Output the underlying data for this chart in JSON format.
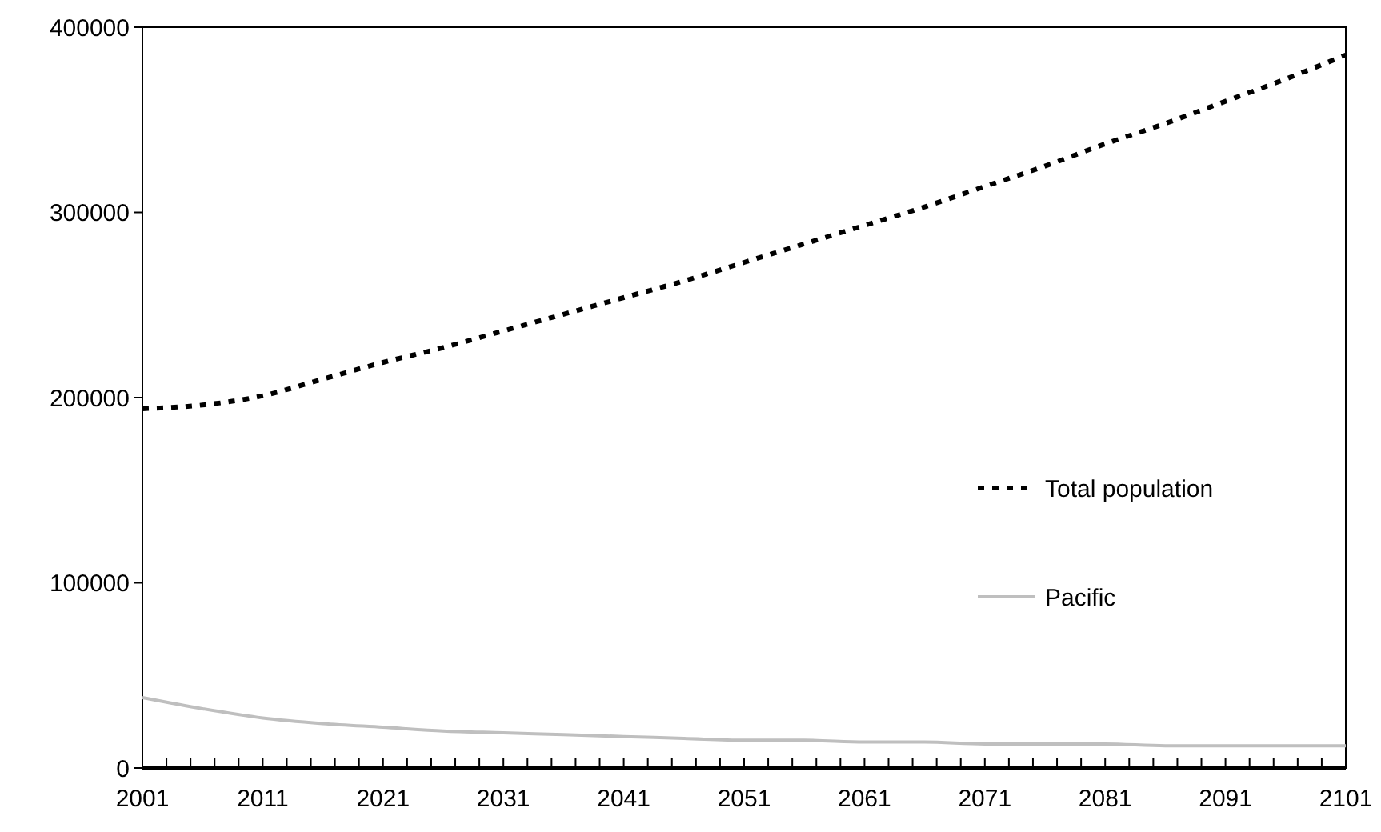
{
  "chart_data": {
    "type": "line",
    "x": [
      2001,
      2006,
      2011,
      2016,
      2021,
      2026,
      2031,
      2036,
      2041,
      2046,
      2051,
      2056,
      2061,
      2066,
      2071,
      2076,
      2081,
      2086,
      2091,
      2096,
      2101
    ],
    "series": [
      {
        "name": "Total population",
        "color": "#000000",
        "line_style": "dotted",
        "values": [
          194000,
          196000,
          201000,
          210000,
          219000,
          227000,
          236000,
          245000,
          254000,
          263000,
          273000,
          283000,
          293000,
          303000,
          314000,
          325000,
          337000,
          348000,
          360000,
          372000,
          385000
        ]
      },
      {
        "name": "Pacific",
        "color": "#bfbfbf",
        "line_style": "solid",
        "values": [
          38000,
          32000,
          27000,
          24000,
          22000,
          20000,
          19000,
          18000,
          17000,
          16000,
          15000,
          15000,
          14000,
          14000,
          13000,
          13000,
          13000,
          12000,
          12000,
          12000,
          12000
        ]
      }
    ],
    "xlim": [
      2001,
      2101
    ],
    "xticks": [
      2001,
      {
        "value": 2003,
        "label": null
      },
      {
        "value": 2005,
        "label": null
      },
      {
        "value": 2007,
        "label": null
      },
      {
        "value": 2009,
        "label": null
      },
      2011,
      {
        "value": 2013,
        "label": null
      },
      {
        "value": 2015,
        "label": null
      },
      {
        "value": 2017,
        "label": null
      },
      {
        "value": 2019,
        "label": null
      },
      2021,
      {
        "value": 2023,
        "label": null
      },
      {
        "value": 2025,
        "label": null
      },
      {
        "value": 2027,
        "label": null
      },
      {
        "value": 2029,
        "label": null
      },
      2031,
      {
        "value": 2033,
        "label": null
      },
      {
        "value": 2035,
        "label": null
      },
      {
        "value": 2037,
        "label": null
      },
      {
        "value": 2039,
        "label": null
      },
      2041,
      {
        "value": 2043,
        "label": null
      },
      {
        "value": 2045,
        "label": null
      },
      {
        "value": 2047,
        "label": null
      },
      {
        "value": 2049,
        "label": null
      },
      2051,
      {
        "value": 2053,
        "label": null
      },
      {
        "value": 2055,
        "label": null
      },
      {
        "value": 2057,
        "label": null
      },
      {
        "value": 2059,
        "label": null
      },
      2061,
      {
        "value": 2063,
        "label": null
      },
      {
        "value": 2065,
        "label": null
      },
      {
        "value": 2067,
        "label": null
      },
      {
        "value": 2069,
        "label": null
      },
      2071,
      {
        "value": 2073,
        "label": null
      },
      {
        "value": 2075,
        "label": null
      },
      {
        "value": 2077,
        "label": null
      },
      {
        "value": 2079,
        "label": null
      },
      2081,
      {
        "value": 2083,
        "label": null
      },
      {
        "value": 2085,
        "label": null
      },
      {
        "value": 2087,
        "label": null
      },
      {
        "value": 2089,
        "label": null
      },
      2091,
      {
        "value": 2093,
        "label": null
      },
      {
        "value": 2095,
        "label": null
      },
      {
        "value": 2097,
        "label": null
      },
      {
        "value": 2099,
        "label": null
      },
      2101
    ],
    "ylim": [
      0,
      400000
    ],
    "yticks": [
      0,
      100000,
      200000,
      300000,
      400000
    ],
    "grid": false,
    "legend": "right",
    "marker": "none"
  }
}
